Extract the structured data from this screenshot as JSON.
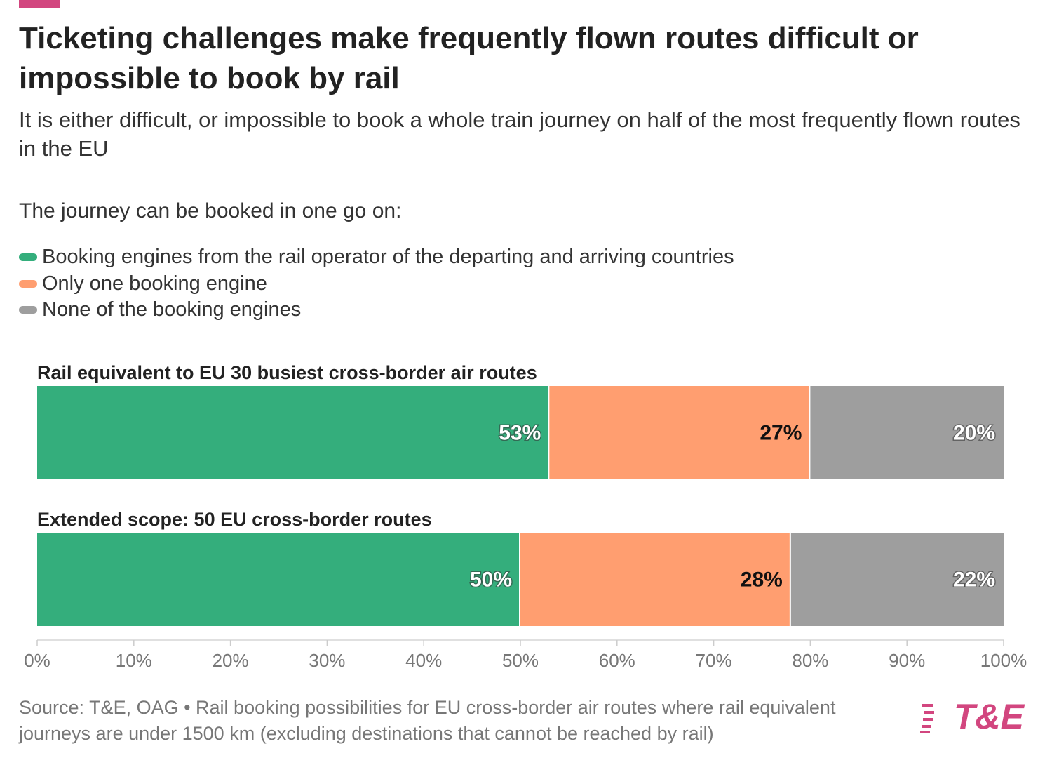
{
  "chart_data": {
    "type": "stacked-bar-horizontal",
    "title": "Ticketing challenges make frequently flown routes difficult or impossible to book by rail",
    "subtitle": "It is either difficult, or impossible to book a whole train journey on half of the most frequently flown routes in the EU",
    "legend_title": "The journey can be booked in one go on:",
    "categories": [
      "Rail equivalent to EU 30 busiest cross-border air routes",
      "Extended scope: 50 EU cross-border routes"
    ],
    "series": [
      {
        "name": "Booking engines from the rail operator of the departing and arriving countries",
        "color": "#34ae7c",
        "label_color": "#ffffff",
        "values": [
          53,
          50
        ],
        "value_labels": [
          "53%",
          "50%"
        ]
      },
      {
        "name": "Only one booking engine",
        "color": "#ff9e70",
        "label_color": "#111111",
        "values": [
          27,
          28
        ],
        "value_labels": [
          "27%",
          "28%"
        ]
      },
      {
        "name": "None of the booking engines",
        "color": "#9e9e9e",
        "label_color": "#ffffff",
        "values": [
          20,
          22
        ],
        "value_labels": [
          "20%",
          "22%"
        ]
      }
    ],
    "xlim": [
      0,
      100
    ],
    "xticks": [
      {
        "value": 0,
        "label": "0%"
      },
      {
        "value": 10,
        "label": "10%"
      },
      {
        "value": 20,
        "label": "20%"
      },
      {
        "value": 30,
        "label": "30%"
      },
      {
        "value": 40,
        "label": "40%"
      },
      {
        "value": 50,
        "label": "50%"
      },
      {
        "value": 60,
        "label": "60%"
      },
      {
        "value": 70,
        "label": "70%"
      },
      {
        "value": 80,
        "label": "80%"
      },
      {
        "value": 90,
        "label": "90%"
      },
      {
        "value": 100,
        "label": "100%"
      }
    ],
    "source": "Source: T&E, OAG • Rail booking possibilities for EU cross-border air routes where rail equivalent journeys are under 1500 km (excluding destinations that cannot be reached by rail)",
    "logo": "T&E"
  }
}
